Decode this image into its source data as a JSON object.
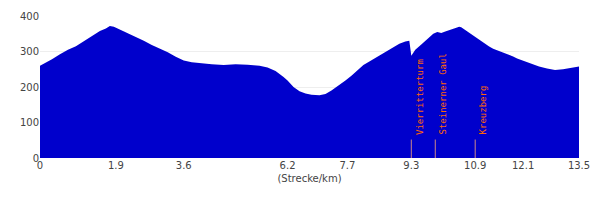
{
  "chart_data": {
    "type": "area",
    "xlabel": "(Strecke/km)",
    "x": [
      0.0,
      0.15,
      0.3,
      0.5,
      0.7,
      0.9,
      1.1,
      1.3,
      1.5,
      1.65,
      1.75,
      1.85,
      2.0,
      2.2,
      2.4,
      2.6,
      2.8,
      3.0,
      3.2,
      3.4,
      3.6,
      3.8,
      4.0,
      4.3,
      4.6,
      4.9,
      5.2,
      5.5,
      5.7,
      5.9,
      6.1,
      6.2,
      6.35,
      6.5,
      6.65,
      6.8,
      7.0,
      7.15,
      7.3,
      7.5,
      7.65,
      7.8,
      7.95,
      8.1,
      8.25,
      8.4,
      8.55,
      8.7,
      8.85,
      9.0,
      9.15,
      9.25,
      9.3,
      9.4,
      9.55,
      9.65,
      9.75,
      9.85,
      9.95,
      10.05,
      10.15,
      10.25,
      10.35,
      10.45,
      10.5,
      10.55,
      10.65,
      10.75,
      10.85,
      10.95,
      11.05,
      11.15,
      11.25,
      11.35,
      11.45,
      11.55,
      11.65,
      11.75,
      11.85,
      11.95,
      12.05,
      12.15,
      12.3,
      12.5,
      12.7,
      12.9,
      13.1,
      13.3,
      13.5
    ],
    "values": [
      260,
      268,
      278,
      292,
      305,
      315,
      330,
      345,
      358,
      365,
      372,
      370,
      362,
      352,
      342,
      330,
      318,
      308,
      298,
      285,
      275,
      270,
      267,
      264,
      262,
      264,
      263,
      260,
      255,
      245,
      228,
      218,
      200,
      188,
      182,
      178,
      177,
      180,
      190,
      205,
      218,
      232,
      248,
      262,
      272,
      282,
      292,
      302,
      314,
      322,
      328,
      330,
      288,
      305,
      320,
      330,
      340,
      350,
      355,
      352,
      356,
      360,
      364,
      368,
      370,
      368,
      360,
      352,
      344,
      336,
      328,
      320,
      314,
      308,
      304,
      300,
      296,
      292,
      286,
      280,
      276,
      272,
      265,
      258,
      252,
      248,
      250,
      255,
      258
    ],
    "color": "#0000CC",
    "xlim": [
      0,
      13.5
    ],
    "ylim": [
      0,
      400
    ],
    "xticks": [
      0,
      1.9,
      3.6,
      6.2,
      7.7,
      9.3,
      10.9,
      12.1,
      13.5
    ],
    "yticks": [
      0,
      100,
      200,
      300,
      400
    ],
    "grid": true,
    "annotations": [
      {
        "x": 9.3,
        "text": "Vierritterturm",
        "color": "#FF6600",
        "line_color": "#cc8888"
      },
      {
        "x": 9.9,
        "text": "Steinerner Gaul",
        "color": "#FF6600",
        "line_color": "#cc8888"
      },
      {
        "x": 10.9,
        "text": "Kreuzberg",
        "color": "#FF6600",
        "line_color": "#cc8888"
      }
    ]
  }
}
